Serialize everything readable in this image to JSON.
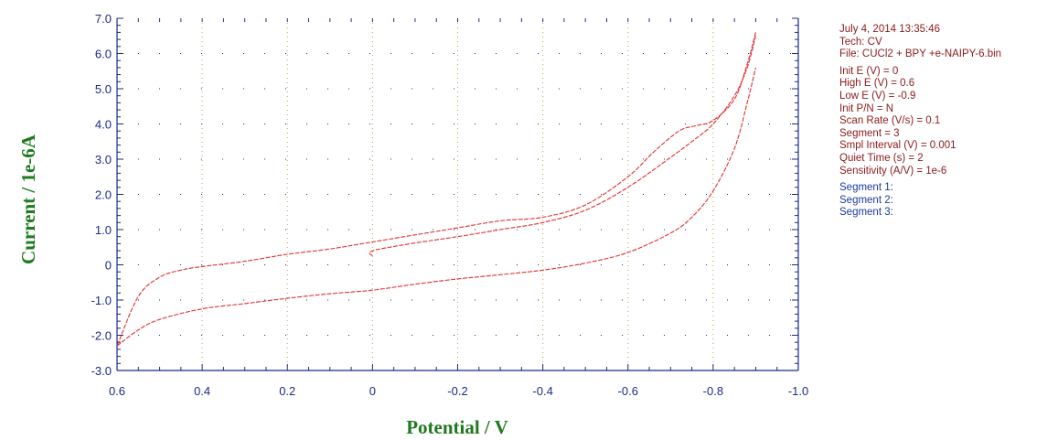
{
  "colors": {
    "curve": "#e03030",
    "axis": "#1a2a8a",
    "axis_title": "#1e7a1e",
    "info_text": "#8b1a1a",
    "segment_text": "#1a3aa0",
    "grid": "#c8a050"
  },
  "chart_data": {
    "type": "line",
    "xlabel": "Potential / V",
    "ylabel": "Current / 1e-6A",
    "x_axis_reversed": true,
    "xlim": [
      0.6,
      -1.0
    ],
    "ylim": [
      -3.0,
      7.0
    ],
    "x_ticks": [
      0.6,
      0.4,
      0.2,
      0,
      -0.2,
      -0.4,
      -0.6,
      -0.8,
      -1.0
    ],
    "x_tick_labels": [
      "0.6",
      "0.4",
      "0.2",
      "0",
      "-0.2",
      "-0.4",
      "-0.6",
      "-0.8",
      "-1.0"
    ],
    "y_ticks": [
      7,
      6,
      5,
      4,
      3,
      2,
      1,
      0,
      -1,
      -2,
      -3
    ],
    "y_tick_labels": [
      "7.0",
      "6.0",
      "5.0",
      "4.0",
      "3.0",
      "2.0",
      "1.0",
      "0",
      "-1.0",
      "-2.0",
      "-3.0"
    ],
    "grid": "dotted",
    "series": [
      {
        "values": [
          [
            0,
            0.25
          ],
          [
            0,
            0.4
          ],
          [
            -0.1,
            0.62
          ],
          [
            -0.2,
            0.8
          ],
          [
            -0.3,
            1.0
          ],
          [
            -0.4,
            1.2
          ],
          [
            -0.5,
            1.55
          ],
          [
            -0.6,
            2.2
          ],
          [
            -0.7,
            3.05
          ],
          [
            -0.75,
            3.5
          ],
          [
            -0.8,
            4.0
          ],
          [
            -0.85,
            4.8
          ],
          [
            -0.88,
            5.6
          ],
          [
            -0.9,
            6.5
          ]
        ]
      },
      {
        "values": [
          [
            -0.9,
            6.6
          ],
          [
            -0.88,
            5.7
          ],
          [
            -0.85,
            4.7
          ],
          [
            -0.8,
            4.1
          ],
          [
            -0.76,
            3.95
          ],
          [
            -0.72,
            3.8
          ],
          [
            -0.66,
            3.2
          ],
          [
            -0.6,
            2.5
          ],
          [
            -0.5,
            1.7
          ],
          [
            -0.4,
            1.35
          ],
          [
            -0.3,
            1.25
          ],
          [
            -0.2,
            1.05
          ],
          [
            -0.1,
            0.85
          ],
          [
            0,
            0.65
          ],
          [
            0.1,
            0.45
          ],
          [
            0.2,
            0.3
          ],
          [
            0.3,
            0.1
          ],
          [
            0.4,
            -0.05
          ],
          [
            0.45,
            -0.15
          ],
          [
            0.5,
            -0.35
          ],
          [
            0.55,
            -0.9
          ],
          [
            0.6,
            -2.3
          ]
        ]
      },
      {
        "values": [
          [
            0.6,
            -2.3
          ],
          [
            0.55,
            -1.85
          ],
          [
            0.5,
            -1.55
          ],
          [
            0.4,
            -1.25
          ],
          [
            0.3,
            -1.1
          ],
          [
            0.2,
            -0.95
          ],
          [
            0.1,
            -0.82
          ],
          [
            0,
            -0.72
          ],
          [
            -0.1,
            -0.55
          ],
          [
            -0.2,
            -0.4
          ],
          [
            -0.3,
            -0.28
          ],
          [
            -0.4,
            -0.15
          ],
          [
            -0.5,
            0.05
          ],
          [
            -0.6,
            0.35
          ],
          [
            -0.7,
            0.9
          ],
          [
            -0.75,
            1.35
          ],
          [
            -0.8,
            2.1
          ],
          [
            -0.85,
            3.3
          ],
          [
            -0.88,
            4.6
          ],
          [
            -0.9,
            5.6
          ]
        ]
      }
    ]
  },
  "info": {
    "lines": [
      "July 4, 2014   13:35:46",
      "Tech: CV",
      "File: CUCl2 + BPY +e-NAIPY-6.bin",
      "Init E (V) = 0",
      "High E (V) = 0.6",
      "Low E (V) = -0.9",
      "Init P/N = N",
      "Scan Rate (V/s) = 0.1",
      "Segment = 3",
      "Smpl Interval (V) = 0.001",
      "Quiet Time (s) = 2",
      "Sensitivity (A/V) = 1e-6"
    ],
    "segments": [
      "Segment 1:",
      "Segment 2:",
      "Segment 3:"
    ]
  }
}
